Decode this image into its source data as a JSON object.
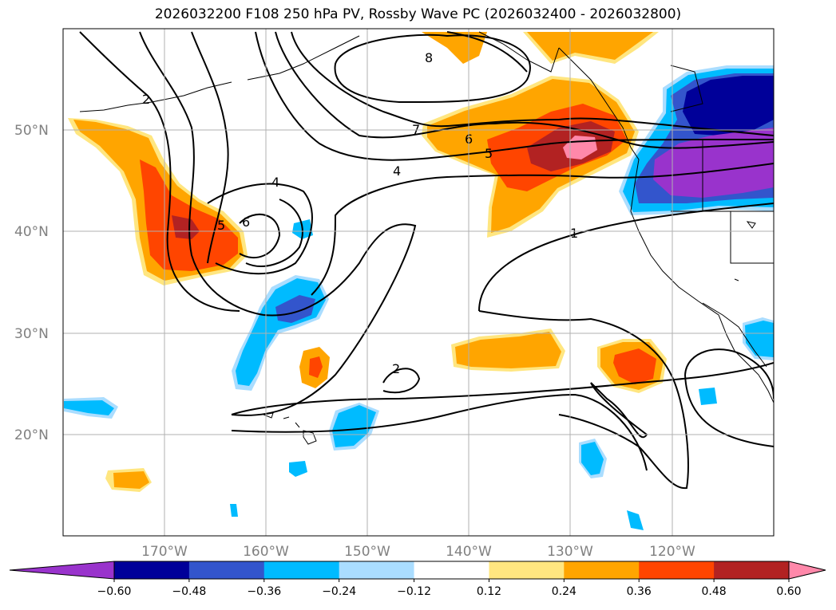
{
  "title": "2026032200 F108 250 hPa PV, Rossby Wave PC (2026032400 - 2026032800)",
  "map": {
    "projection": "PlateCarree",
    "lon_range": [
      -180,
      -110
    ],
    "lat_range": [
      10,
      60
    ],
    "grid": true,
    "lat_ticks": [
      "50°N",
      "40°N",
      "30°N",
      "20°N"
    ],
    "lon_ticks": [
      "170°W",
      "160°W",
      "150°W",
      "140°W",
      "130°W",
      "120°W"
    ]
  },
  "colorbar": {
    "tick_labels": [
      "−0.60",
      "−0.48",
      "−0.36",
      "−0.24",
      "−0.12",
      "0.12",
      "0.24",
      "0.36",
      "0.48",
      "0.60"
    ],
    "colors": [
      "#9933cc",
      "#000099",
      "#3355cc",
      "#00bbff",
      "#aaddff",
      "#ffffff",
      "#ffe680",
      "#ffa500",
      "#ff4500",
      "#b22222",
      "#ff88aa"
    ],
    "extend": "both"
  },
  "contour_labels": [
    "2",
    "8",
    "7",
    "6",
    "5",
    "4",
    "4",
    "5",
    "6",
    "1",
    "2"
  ],
  "chart_data": {
    "type": "heatmap",
    "title": "2026032200 F108 250 hPa PV, Rossby Wave PC (2026032400 - 2026032800)",
    "fill_levels": [
      -0.6,
      -0.48,
      -0.36,
      -0.24,
      -0.12,
      0.12,
      0.24,
      0.36,
      0.48,
      0.6
    ],
    "contour_values_labeled": [
      1,
      2,
      4,
      5,
      6,
      7,
      8
    ],
    "features": [
      {
        "kind": "positive",
        "peak": 0.55,
        "center_lon": -168,
        "center_lat": 40.5
      },
      {
        "kind": "positive",
        "peak": 0.6,
        "center_lon": -130,
        "center_lat": 48.5
      },
      {
        "kind": "positive",
        "peak": 0.4,
        "center_lon": -125,
        "center_lat": 25.5
      },
      {
        "kind": "positive",
        "peak": 0.3,
        "center_lon": -137,
        "center_lat": 28
      },
      {
        "kind": "positive",
        "peak": 0.4,
        "center_lon": -155,
        "center_lat": 26
      },
      {
        "kind": "positive",
        "peak": 0.25,
        "center_lon": -173,
        "center_lat": 15.5
      },
      {
        "kind": "negative",
        "peak": -0.65,
        "center_lon": -115,
        "center_lat": 46
      },
      {
        "kind": "negative",
        "peak": -0.4,
        "center_lon": -157,
        "center_lat": 32
      },
      {
        "kind": "negative",
        "peak": -0.3,
        "center_lon": -150,
        "center_lat": 20.5
      },
      {
        "kind": "negative",
        "peak": -0.3,
        "center_lon": -177,
        "center_lat": 23
      },
      {
        "kind": "negative",
        "peak": -0.3,
        "center_lon": -130,
        "center_lat": 17
      },
      {
        "kind": "negative",
        "peak": -0.3,
        "center_lon": -113,
        "center_lat": 29.5
      }
    ]
  }
}
